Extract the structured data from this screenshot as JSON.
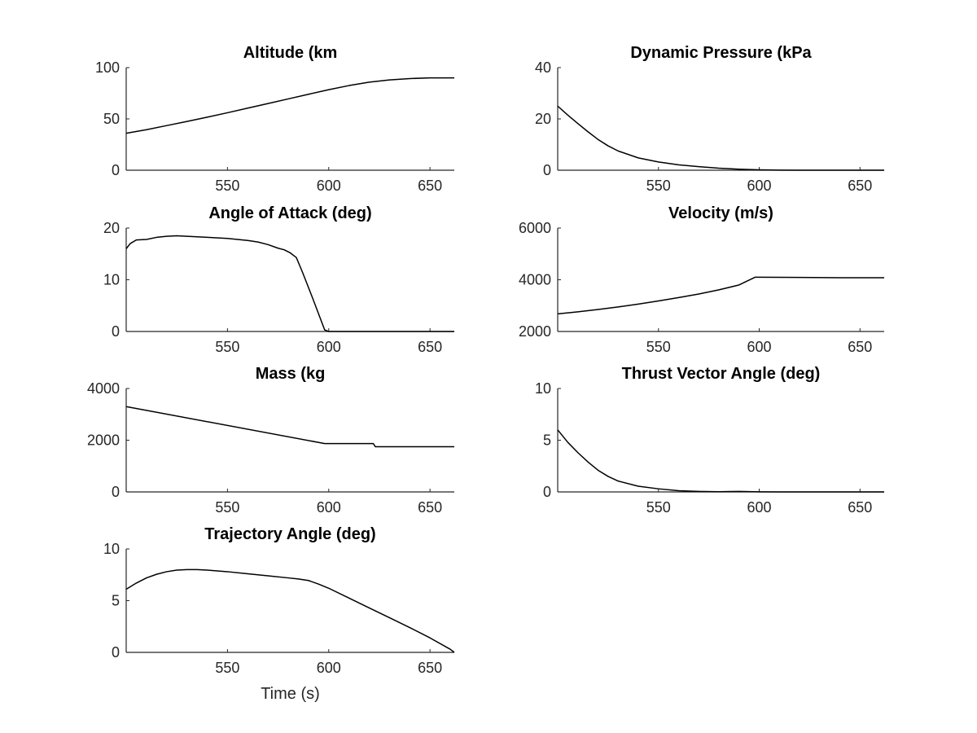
{
  "chart_data": [
    {
      "type": "line",
      "title": "Altitude (km",
      "xlabel": "",
      "ylabel": "",
      "xlim": [
        500,
        662
      ],
      "ylim": [
        0,
        100
      ],
      "xticks": [
        550,
        600,
        650
      ],
      "yticks": [
        0,
        50,
        100
      ],
      "grid": false,
      "series": [
        {
          "x": [
            500,
            510,
            520,
            530,
            540,
            550,
            560,
            570,
            580,
            590,
            600,
            610,
            620,
            630,
            640,
            650,
            660,
            662
          ],
          "y": [
            36,
            39.5,
            43.5,
            47.5,
            51.7,
            56,
            60.5,
            65,
            69.5,
            74,
            78.5,
            82.5,
            85.8,
            88,
            89.3,
            90,
            90,
            90
          ]
        }
      ]
    },
    {
      "type": "line",
      "title": "Dynamic Pressure (kPa",
      "xlabel": "",
      "ylabel": "",
      "xlim": [
        500,
        662
      ],
      "ylim": [
        0,
        40
      ],
      "xticks": [
        550,
        600,
        650
      ],
      "yticks": [
        0,
        20,
        40
      ],
      "grid": false,
      "series": [
        {
          "x": [
            500,
            505,
            510,
            515,
            520,
            525,
            530,
            540,
            550,
            560,
            570,
            580,
            590,
            600,
            610,
            620,
            640,
            662
          ],
          "y": [
            25,
            21.5,
            18.2,
            15,
            12,
            9.5,
            7.5,
            4.8,
            3.2,
            2.1,
            1.4,
            0.8,
            0.4,
            0.15,
            0.05,
            0.02,
            0,
            0
          ]
        }
      ]
    },
    {
      "type": "line",
      "title": "Angle of Attack (deg)",
      "xlabel": "",
      "ylabel": "",
      "xlim": [
        500,
        662
      ],
      "ylim": [
        0,
        20
      ],
      "xticks": [
        550,
        600,
        650
      ],
      "yticks": [
        0,
        10,
        20
      ],
      "grid": false,
      "series": [
        {
          "x": [
            500,
            502,
            505,
            510,
            515,
            520,
            525,
            530,
            540,
            550,
            560,
            565,
            570,
            575,
            578,
            581,
            584,
            587,
            592,
            598,
            600,
            662
          ],
          "y": [
            16,
            17,
            17.7,
            17.8,
            18.2,
            18.4,
            18.5,
            18.4,
            18.2,
            18,
            17.6,
            17.3,
            16.8,
            16.1,
            15.8,
            15.2,
            14.3,
            11.5,
            6.5,
            0.3,
            0,
            0
          ]
        }
      ]
    },
    {
      "type": "line",
      "title": "Velocity (m/s)",
      "xlabel": "",
      "ylabel": "",
      "xlim": [
        500,
        662
      ],
      "ylim": [
        2000,
        6000
      ],
      "xticks": [
        550,
        600,
        650
      ],
      "yticks": [
        2000,
        4000,
        6000
      ],
      "grid": false,
      "series": [
        {
          "x": [
            500,
            510,
            520,
            530,
            540,
            550,
            560,
            570,
            580,
            590,
            598,
            600,
            620,
            640,
            662
          ],
          "y": [
            2680,
            2760,
            2850,
            2950,
            3060,
            3180,
            3310,
            3450,
            3610,
            3800,
            4100,
            4100,
            4090,
            4080,
            4080
          ]
        }
      ]
    },
    {
      "type": "line",
      "title": "Mass (kg",
      "xlabel": "",
      "ylabel": "",
      "xlim": [
        500,
        662
      ],
      "ylim": [
        0,
        4000
      ],
      "xticks": [
        550,
        600,
        650
      ],
      "yticks": [
        0,
        2000,
        4000
      ],
      "grid": false,
      "series": [
        {
          "x": [
            500,
            598,
            622,
            623,
            662
          ],
          "y": [
            3300,
            1870,
            1870,
            1750,
            1750
          ]
        }
      ]
    },
    {
      "type": "line",
      "title": "Thrust Vector Angle (deg)",
      "xlabel": "",
      "ylabel": "",
      "xlim": [
        500,
        662
      ],
      "ylim": [
        0,
        10
      ],
      "xticks": [
        550,
        600,
        650
      ],
      "yticks": [
        0,
        5,
        10
      ],
      "grid": false,
      "series": [
        {
          "x": [
            500,
            505,
            510,
            515,
            520,
            525,
            530,
            540,
            550,
            560,
            570,
            580,
            590,
            600,
            610,
            620,
            640,
            662
          ],
          "y": [
            6,
            4.8,
            3.8,
            2.9,
            2.1,
            1.5,
            1.05,
            0.55,
            0.3,
            0.12,
            0.05,
            0.02,
            0.05,
            0.01,
            0,
            0,
            0,
            0
          ]
        }
      ]
    },
    {
      "type": "line",
      "title": "Trajectory Angle (deg)",
      "xlabel": "Time (s)",
      "ylabel": "",
      "xlim": [
        500,
        662
      ],
      "ylim": [
        0,
        10
      ],
      "xticks": [
        550,
        600,
        650
      ],
      "yticks": [
        0,
        5,
        10
      ],
      "grid": false,
      "series": [
        {
          "x": [
            500,
            505,
            510,
            515,
            520,
            525,
            530,
            535,
            540,
            550,
            560,
            570,
            580,
            585,
            590,
            595,
            600,
            610,
            620,
            630,
            640,
            650,
            660,
            662
          ],
          "y": [
            6.1,
            6.7,
            7.2,
            7.55,
            7.8,
            7.95,
            8,
            8,
            7.95,
            7.8,
            7.6,
            7.4,
            7.2,
            7.1,
            6.95,
            6.6,
            6.2,
            5.25,
            4.3,
            3.35,
            2.4,
            1.4,
            0.3,
            0
          ]
        }
      ]
    }
  ]
}
